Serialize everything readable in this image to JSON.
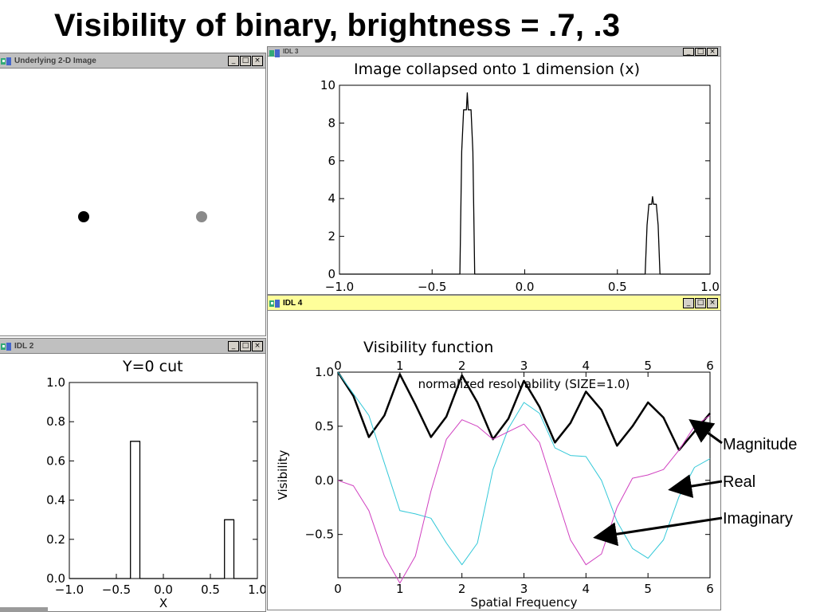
{
  "slide": {
    "title": "Visibility of binary, brightness = .7, .3"
  },
  "windows": {
    "image2d": {
      "title": "Underlying 2-D Image"
    },
    "collapsed": {
      "title": "IDL 3"
    },
    "visibility": {
      "title": "IDL 4"
    },
    "cut": {
      "title": "IDL 2"
    }
  },
  "window_buttons": {
    "minimize": "_",
    "maximize": "□",
    "close": "×"
  },
  "image2d": {
    "stars": [
      {
        "x": -0.3,
        "y": 0,
        "brightness": 0.7,
        "color": "#000000"
      },
      {
        "x": 0.7,
        "y": 0,
        "brightness": 0.3,
        "color": "#8a8a8a"
      }
    ]
  },
  "annotations": {
    "magnitude": "Magnitude",
    "real": "Real",
    "imaginary": "Imaginary"
  },
  "chart_data": [
    {
      "id": "collapsed",
      "type": "line",
      "title": "Image collapsed onto 1 dimension (x)",
      "xlabel": "",
      "ylabel": "",
      "xlim": [
        -1.0,
        1.0
      ],
      "ylim": [
        0,
        10
      ],
      "xticks": [
        "−1.0",
        "−0.5",
        "0.0",
        "0.5",
        "1.0"
      ],
      "yticks": [
        "0",
        "2",
        "4",
        "6",
        "8",
        "10"
      ],
      "series": [
        {
          "values": [
            [
              -1.0,
              0
            ],
            [
              -0.35,
              0
            ],
            [
              -0.34,
              6.5
            ],
            [
              -0.33,
              8.7
            ],
            [
              -0.315,
              8.7
            ],
            [
              -0.31,
              9.6
            ],
            [
              -0.305,
              8.7
            ],
            [
              -0.29,
              8.7
            ],
            [
              -0.28,
              6.5
            ],
            [
              -0.27,
              0
            ],
            [
              0.65,
              0
            ],
            [
              0.66,
              2.6
            ],
            [
              0.67,
              3.7
            ],
            [
              0.685,
              3.7
            ],
            [
              0.69,
              4.1
            ],
            [
              0.695,
              3.7
            ],
            [
              0.71,
              3.7
            ],
            [
              0.72,
              2.6
            ],
            [
              0.73,
              0
            ],
            [
              1.0,
              0
            ]
          ]
        }
      ],
      "color": "#000000"
    },
    {
      "id": "cut",
      "type": "line",
      "title": "Y=0 cut",
      "xlabel": "X",
      "ylabel": "",
      "xlim": [
        -1.0,
        1.0
      ],
      "ylim": [
        0,
        1.0
      ],
      "xticks": [
        "−1.0",
        "−0.5",
        "0.0",
        "0.5",
        "1.0"
      ],
      "yticks": [
        "0.0",
        "0.2",
        "0.4",
        "0.6",
        "0.8",
        "1.0"
      ],
      "series": [
        {
          "values": [
            [
              -1.0,
              0
            ],
            [
              -0.35,
              0
            ],
            [
              -0.35,
              0.7
            ],
            [
              -0.25,
              0.7
            ],
            [
              -0.25,
              0
            ],
            [
              0.65,
              0
            ],
            [
              0.65,
              0.3
            ],
            [
              0.75,
              0.3
            ],
            [
              0.75,
              0
            ],
            [
              1.0,
              0
            ]
          ]
        }
      ],
      "color": "#000000"
    },
    {
      "id": "visibility",
      "type": "line",
      "title": "Visibility function",
      "top_axis_label": "normalized resolvability (SIZE=1.0)",
      "xlabel": "Spatial Frequency",
      "ylabel": "Visibility",
      "xlim": [
        0,
        6
      ],
      "ylim": [
        -0.9,
        1.0
      ],
      "xticks": [
        "0",
        "1",
        "2",
        "3",
        "4",
        "5",
        "6"
      ],
      "yticks": [
        "−0.5",
        "0.0",
        "0.5",
        "1.0"
      ],
      "ytick_values": [
        -0.5,
        0.0,
        0.5,
        1.0
      ],
      "series": [
        {
          "name": "Magnitude",
          "color": "#000000",
          "width": 2.5,
          "values": [
            [
              0,
              1.0
            ],
            [
              0.25,
              0.78
            ],
            [
              0.5,
              0.4
            ],
            [
              0.75,
              0.6
            ],
            [
              1.0,
              0.98
            ],
            [
              1.25,
              0.7
            ],
            [
              1.5,
              0.4
            ],
            [
              1.75,
              0.59
            ],
            [
              2.0,
              0.97
            ],
            [
              2.25,
              0.72
            ],
            [
              2.5,
              0.38
            ],
            [
              2.75,
              0.57
            ],
            [
              3.0,
              0.92
            ],
            [
              3.25,
              0.68
            ],
            [
              3.5,
              0.35
            ],
            [
              3.75,
              0.53
            ],
            [
              4.0,
              0.82
            ],
            [
              4.25,
              0.65
            ],
            [
              4.5,
              0.32
            ],
            [
              4.75,
              0.5
            ],
            [
              5.0,
              0.72
            ],
            [
              5.25,
              0.58
            ],
            [
              5.5,
              0.28
            ],
            [
              5.75,
              0.45
            ],
            [
              6.0,
              0.62
            ]
          ]
        },
        {
          "name": "Real",
          "color": "#33c8d8",
          "width": 1,
          "values": [
            [
              0,
              1.0
            ],
            [
              0.5,
              0.6
            ],
            [
              1.0,
              -0.28
            ],
            [
              1.25,
              -0.31
            ],
            [
              1.5,
              -0.35
            ],
            [
              1.75,
              -0.58
            ],
            [
              2.0,
              -0.78
            ],
            [
              2.25,
              -0.58
            ],
            [
              2.5,
              0.1
            ],
            [
              2.75,
              0.48
            ],
            [
              3.0,
              0.72
            ],
            [
              3.25,
              0.62
            ],
            [
              3.5,
              0.3
            ],
            [
              3.75,
              0.23
            ],
            [
              4.0,
              0.22
            ],
            [
              4.25,
              0.0
            ],
            [
              4.5,
              -0.38
            ],
            [
              4.75,
              -0.63
            ],
            [
              5.0,
              -0.72
            ],
            [
              5.25,
              -0.55
            ],
            [
              5.5,
              -0.15
            ],
            [
              5.75,
              0.12
            ],
            [
              6.0,
              0.2
            ]
          ]
        },
        {
          "name": "Imaginary",
          "color": "#d040c0",
          "width": 1,
          "values": [
            [
              0,
              0
            ],
            [
              0.25,
              -0.05
            ],
            [
              0.5,
              -0.28
            ],
            [
              0.75,
              -0.7
            ],
            [
              1.0,
              -0.95
            ],
            [
              1.25,
              -0.7
            ],
            [
              1.5,
              -0.1
            ],
            [
              1.75,
              0.38
            ],
            [
              2.0,
              0.56
            ],
            [
              2.25,
              0.5
            ],
            [
              2.5,
              0.38
            ],
            [
              2.75,
              0.45
            ],
            [
              3.0,
              0.52
            ],
            [
              3.25,
              0.35
            ],
            [
              3.5,
              -0.1
            ],
            [
              3.75,
              -0.55
            ],
            [
              4.0,
              -0.78
            ],
            [
              4.25,
              -0.68
            ],
            [
              4.5,
              -0.25
            ],
            [
              4.75,
              0.02
            ],
            [
              5.0,
              0.05
            ],
            [
              5.25,
              0.1
            ],
            [
              5.5,
              0.28
            ],
            [
              5.75,
              0.5
            ],
            [
              6.0,
              0.6
            ]
          ]
        }
      ]
    }
  ]
}
